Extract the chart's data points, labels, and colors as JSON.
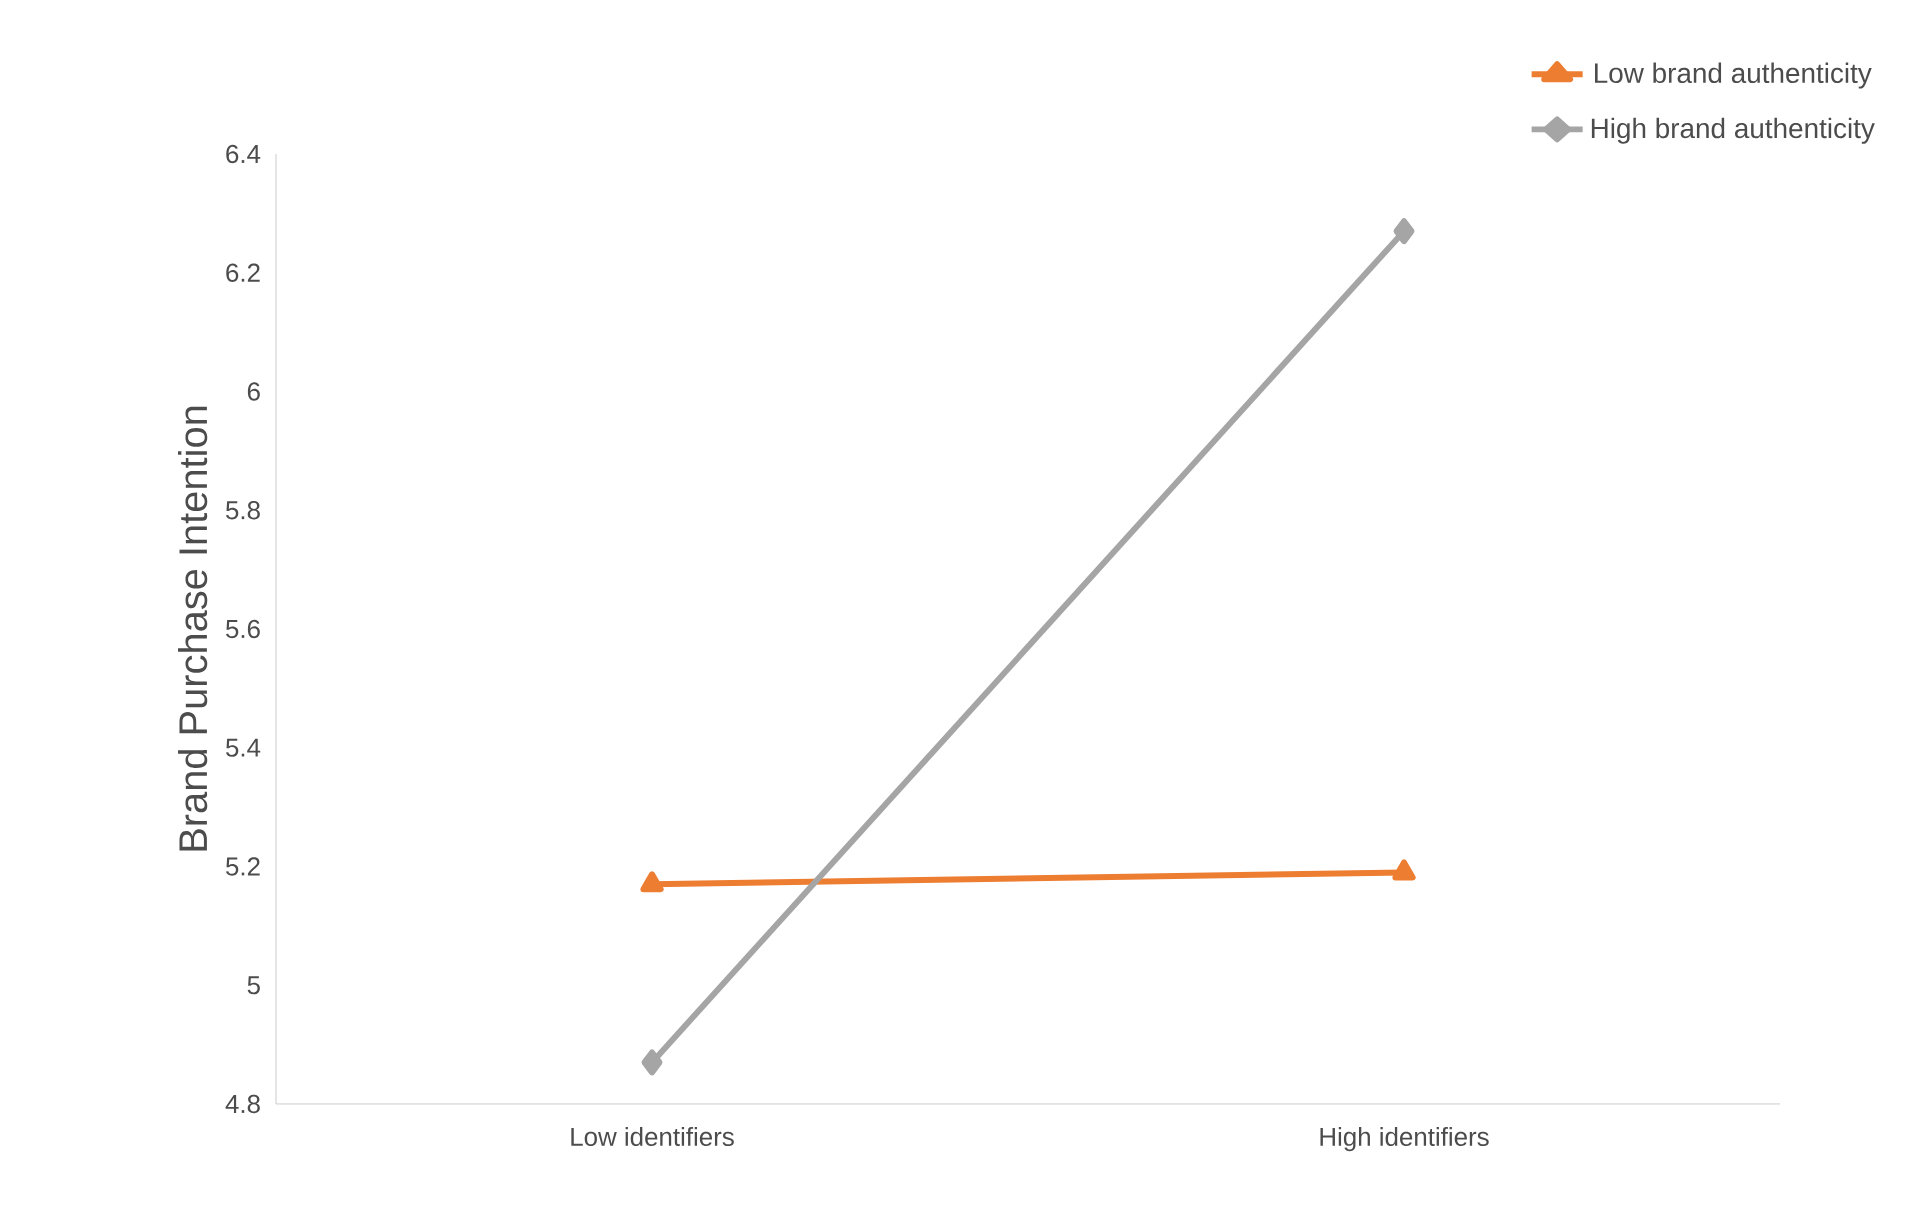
{
  "chart_data": {
    "type": "line",
    "ylabel": "Brand Purchase Intention",
    "categories": [
      "Low identifiers",
      "High identifiers"
    ],
    "series": [
      {
        "name": "Low brand authenticity",
        "color": "#ed7d31",
        "marker": "triangle",
        "values": [
          5.17,
          5.19
        ]
      },
      {
        "name": "High brand authenticity",
        "color": "#a5a5a5",
        "marker": "diamond",
        "values": [
          4.87,
          6.27
        ]
      }
    ],
    "ylim": [
      4.8,
      6.4
    ],
    "yticks": [
      {
        "value": 4.8,
        "label": "4.8"
      },
      {
        "value": 5,
        "label": "5"
      },
      {
        "value": 5.2,
        "label": "5.2"
      },
      {
        "value": 5.4,
        "label": "5.4"
      },
      {
        "value": 5.6,
        "label": "5.6"
      },
      {
        "value": 5.8,
        "label": "5.8"
      },
      {
        "value": 6,
        "label": "6"
      },
      {
        "value": 6.2,
        "label": "6.2"
      },
      {
        "value": 6.4,
        "label": "6.4"
      }
    ],
    "grid": false,
    "legend": "top right",
    "line_style": "solid"
  }
}
